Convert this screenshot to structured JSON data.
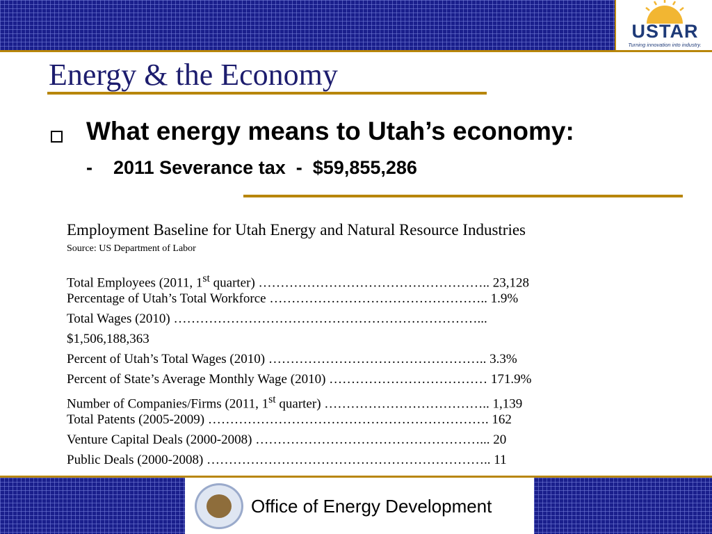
{
  "branding": {
    "logo_text": "USTAR",
    "logo_tagline": "Turning innovation into industry.",
    "footer_text": "Office of Energy Development",
    "seal_text": "THE GREAT SEAL OF THE STATE OF UTAH 1896"
  },
  "colors": {
    "band": "#1a1f8c",
    "accent": "#b8860b",
    "title": "#1d1d6e"
  },
  "slide": {
    "title": "Energy & the Economy",
    "headline": "What energy means to Utah’s economy:",
    "sub_dash": "-",
    "sub_label": "2011 Severance tax",
    "sub_sep": "-",
    "sub_value": "$59,855,286"
  },
  "table": {
    "title": "Employment Baseline for Utah Energy and Natural Resource Industries",
    "source": "Source: US Department of Labor",
    "rows": [
      {
        "pre": "Total Employees (2011, 1",
        "sup": "st",
        "post": " quarter)  ……………………………………………..  23,128"
      },
      {
        "pre": "Percentage of Utah’s Total Workforce  …………………………………………..  1.9%"
      },
      {
        "pre": "Total Wages (2010)  ……………………………………………………………..."
      },
      {
        "pre": "$1,506,188,363"
      },
      {
        "pre": "Percent of Utah’s Total Wages (2010)  …………………………………………..  3.3%"
      },
      {
        "pre": "Percent of State’s Average Monthly Wage (2010)  ………………………………  171.9%"
      },
      {
        "pre": "Number of Companies/Firms (2011, 1",
        "sup": "st",
        "post": " quarter)  ………………………………..  1,139"
      },
      {
        "pre": "Total Patents (2005-2009)  ……………………………………………………….  162"
      },
      {
        "pre": "Venture Capital Deals (2000-2008)  ……………………………………………...  20"
      },
      {
        "pre": "Public Deals (2000-2008)  ………………………………………………………..  11"
      }
    ]
  }
}
